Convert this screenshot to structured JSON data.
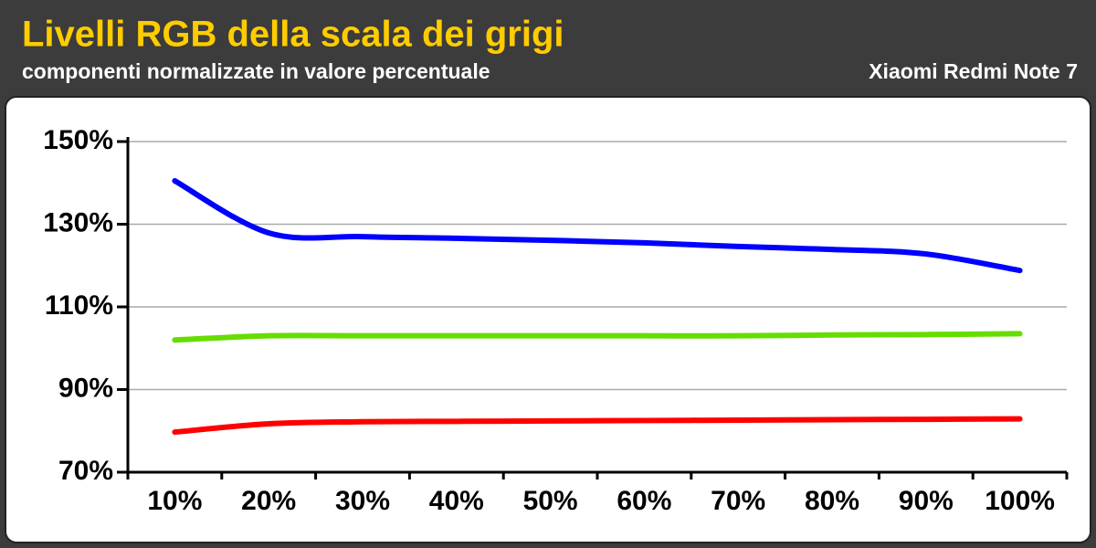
{
  "chart_data": {
    "type": "line",
    "title": "Livelli RGB della scala dei grigi",
    "subtitle": "componenti normalizzate in valore percentuale",
    "annotation": "Xiaomi Redmi Note 7",
    "categories": [
      "10%",
      "20%",
      "30%",
      "40%",
      "50%",
      "60%",
      "70%",
      "80%",
      "90%",
      "100%"
    ],
    "series": [
      {
        "color": "#0000ff",
        "values": [
          140.5,
          127.9,
          127,
          126.6,
          126.1,
          125.5,
          124.6,
          123.9,
          122.8,
          118.8
        ]
      },
      {
        "color": "#66dd00",
        "values": [
          102,
          103,
          103,
          103,
          103,
          103,
          103,
          103.2,
          103.3,
          103.5
        ]
      },
      {
        "color": "#ff0000",
        "values": [
          79.7,
          81.7,
          82.2,
          82.3,
          82.4,
          82.5,
          82.6,
          82.7,
          82.8,
          82.9
        ]
      }
    ],
    "ylim": [
      70,
      150
    ],
    "yticks": [
      {
        "value": 70,
        "label": "70%"
      },
      {
        "value": 90,
        "label": "90%"
      },
      {
        "value": 110,
        "label": "110%"
      },
      {
        "value": 130,
        "label": "130%"
      },
      {
        "value": 150,
        "label": "150%"
      }
    ],
    "grid": true
  }
}
